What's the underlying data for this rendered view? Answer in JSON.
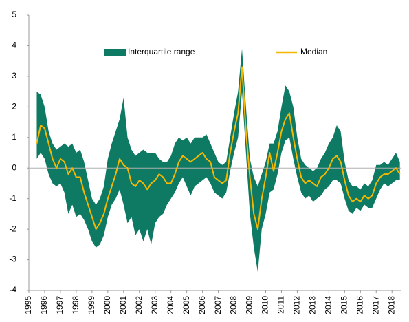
{
  "chart_data": {
    "type": "band-line",
    "x": [
      1995.5,
      1995.75,
      1996,
      1996.25,
      1996.5,
      1996.75,
      1997,
      1997.25,
      1997.5,
      1997.75,
      1998,
      1998.25,
      1998.5,
      1998.75,
      1999,
      1999.25,
      1999.5,
      1999.75,
      2000,
      2000.25,
      2000.5,
      2000.75,
      2001,
      2001.25,
      2001.5,
      2001.75,
      2002,
      2002.25,
      2002.5,
      2002.75,
      2003,
      2003.25,
      2003.5,
      2003.75,
      2004,
      2004.25,
      2004.5,
      2004.75,
      2005,
      2005.25,
      2005.5,
      2005.75,
      2006,
      2006.25,
      2006.5,
      2006.75,
      2007,
      2007.25,
      2007.5,
      2007.75,
      2008,
      2008.25,
      2008.5,
      2008.75,
      2009,
      2009.25,
      2009.5,
      2009.75,
      2010,
      2010.25,
      2010.5,
      2010.75,
      2011,
      2011.25,
      2011.5,
      2011.75,
      2012,
      2012.25,
      2012.5,
      2012.75,
      2013,
      2013.25,
      2013.5,
      2013.75,
      2014,
      2014.25,
      2014.5,
      2014.75,
      2015,
      2015.25,
      2015.5,
      2015.75,
      2016,
      2016.25,
      2016.5,
      2016.75,
      2017,
      2017.25,
      2017.5,
      2017.75,
      2018,
      2018.25,
      2018.5
    ],
    "series": [
      {
        "name": "Interquartile range",
        "color": "#0e7a63",
        "low": [
          0.3,
          0.5,
          0.3,
          -0.2,
          -0.5,
          -0.6,
          -0.5,
          -0.8,
          -1.5,
          -1.2,
          -1.6,
          -1.5,
          -1.7,
          -2.0,
          -2.4,
          -2.6,
          -2.5,
          -2.2,
          -1.6,
          -1.2,
          -1.0,
          -0.7,
          -1.2,
          -1.8,
          -1.6,
          -2.2,
          -2.0,
          -2.4,
          -2.0,
          -2.5,
          -1.8,
          -1.6,
          -1.5,
          -1.2,
          -1.0,
          -0.8,
          -0.5,
          -0.3,
          -0.6,
          -0.9,
          -0.6,
          -0.5,
          -0.4,
          -0.3,
          -0.5,
          -0.8,
          -0.9,
          -1.0,
          -0.8,
          -0.1,
          0.5,
          1.0,
          2.5,
          0.5,
          -1.5,
          -2.6,
          -3.4,
          -2.0,
          -1.5,
          -0.8,
          -0.7,
          -0.2,
          0.5,
          0.9,
          1.0,
          0.3,
          -0.3,
          -0.8,
          -1.0,
          -0.9,
          -1.1,
          -1.0,
          -0.9,
          -0.7,
          -0.6,
          -0.4,
          -0.4,
          -0.5,
          -1.0,
          -1.4,
          -1.5,
          -1.3,
          -1.4,
          -1.2,
          -1.3,
          -1.3,
          -1.0,
          -0.7,
          -0.5,
          -0.6,
          -0.5,
          -0.4,
          -0.4
        ],
        "high": [
          2.5,
          2.4,
          2.0,
          1.2,
          0.8,
          0.6,
          0.7,
          0.8,
          0.7,
          0.8,
          0.5,
          0.6,
          0.2,
          -0.4,
          -1.0,
          -1.2,
          -1.0,
          -0.6,
          0.3,
          0.8,
          1.2,
          1.6,
          2.3,
          1.0,
          0.6,
          0.4,
          0.5,
          0.6,
          0.5,
          0.5,
          0.5,
          0.3,
          0.2,
          0.2,
          0.4,
          0.8,
          1.0,
          0.9,
          1.0,
          0.8,
          1.0,
          1.0,
          1.0,
          1.1,
          0.8,
          0.5,
          0.2,
          0.1,
          0.2,
          1.0,
          1.8,
          2.5,
          3.9,
          2.0,
          0.3,
          -0.3,
          -0.6,
          -0.2,
          0.2,
          0.8,
          0.8,
          1.2,
          2.0,
          2.7,
          2.5,
          2.0,
          1.0,
          0.3,
          0.1,
          0.0,
          -0.1,
          0.0,
          0.3,
          0.5,
          0.8,
          1.0,
          1.4,
          1.2,
          0.2,
          -0.4,
          -0.6,
          -0.6,
          -0.7,
          -0.5,
          -0.6,
          -0.4,
          0.1,
          0.1,
          0.2,
          0.1,
          0.3,
          0.5,
          0.2
        ]
      },
      {
        "name": "Median",
        "color": "#f5b800",
        "values": [
          0.8,
          1.4,
          1.3,
          0.8,
          0.3,
          0.0,
          0.3,
          0.2,
          -0.2,
          0.0,
          -0.3,
          -0.3,
          -0.8,
          -1.2,
          -1.6,
          -2.0,
          -1.8,
          -1.5,
          -1.0,
          -0.6,
          -0.2,
          0.3,
          0.1,
          0.0,
          -0.5,
          -0.6,
          -0.4,
          -0.5,
          -0.7,
          -0.5,
          -0.4,
          -0.2,
          -0.3,
          -0.5,
          -0.5,
          -0.2,
          0.2,
          0.4,
          0.3,
          0.2,
          0.3,
          0.4,
          0.5,
          0.3,
          0.2,
          -0.3,
          -0.4,
          -0.5,
          -0.4,
          0.5,
          1.2,
          1.8,
          3.3,
          1.2,
          -0.3,
          -1.5,
          -2.0,
          -1.0,
          -0.3,
          0.5,
          -0.1,
          0.5,
          1.2,
          1.6,
          1.8,
          1.0,
          0.3,
          -0.3,
          -0.5,
          -0.4,
          -0.5,
          -0.6,
          -0.3,
          -0.2,
          0.0,
          0.3,
          0.4,
          0.2,
          -0.4,
          -0.9,
          -1.1,
          -1.0,
          -1.1,
          -0.9,
          -1.0,
          -0.9,
          -0.5,
          -0.3,
          -0.2,
          -0.2,
          -0.1,
          0.0,
          -0.2
        ]
      }
    ],
    "xlim": [
      1995,
      2018.6
    ],
    "xticks": [
      1995,
      1996,
      1997,
      1998,
      1999,
      2000,
      2001,
      2002,
      2003,
      2004,
      2005,
      2006,
      2007,
      2008,
      2009,
      2010,
      2011,
      2012,
      2013,
      2014,
      2015,
      2016,
      2017,
      2018
    ],
    "ylim": [
      -4,
      5
    ],
    "yticks": [
      -4,
      -3,
      -2,
      -1,
      0,
      1,
      2,
      3,
      4,
      5
    ],
    "legend": "top"
  }
}
